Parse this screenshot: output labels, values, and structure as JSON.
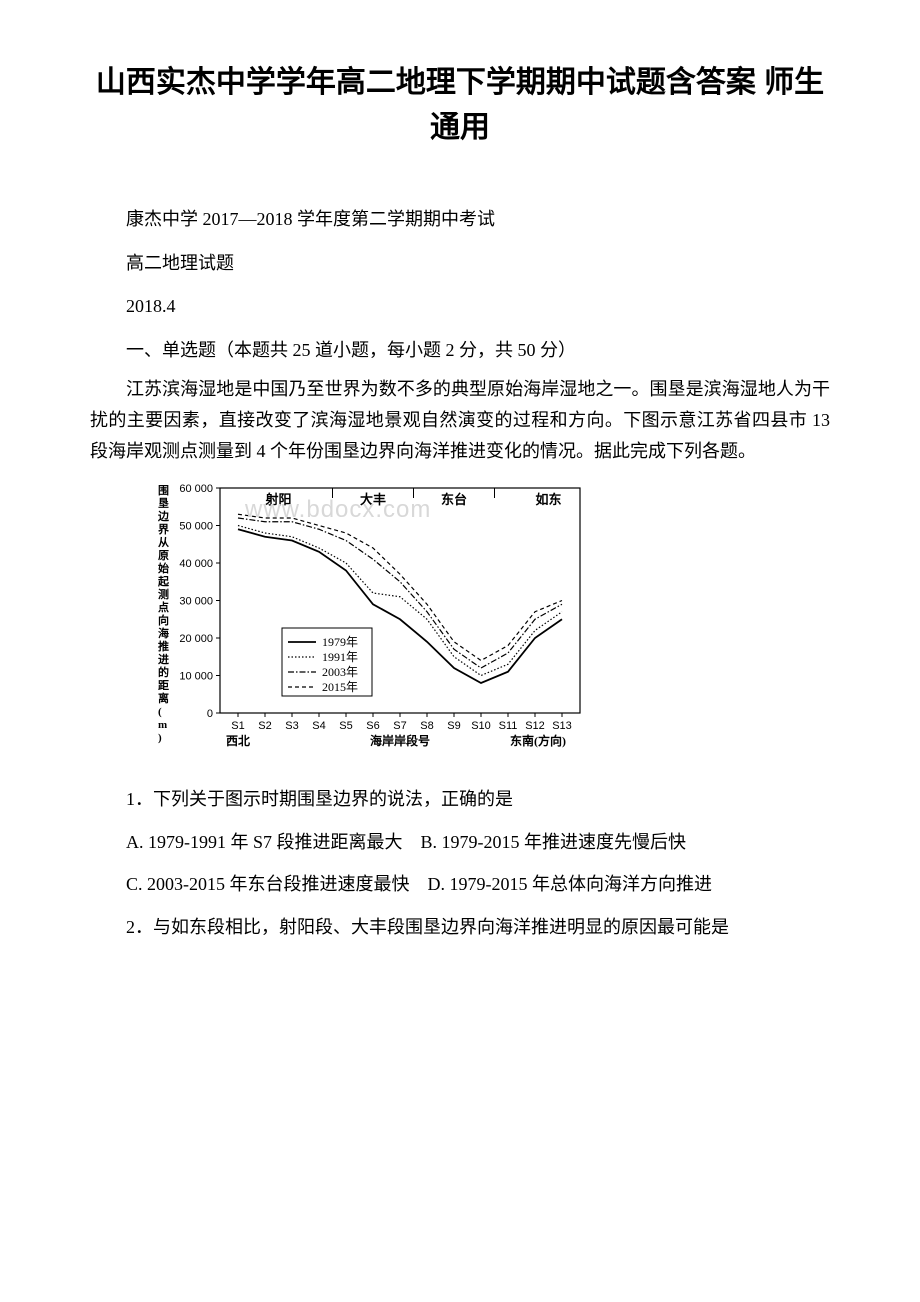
{
  "document": {
    "title": "山西实杰中学学年高二地理下学期期中试题含答案 师生通用",
    "school_line": "康杰中学 2017—2018 学年度第二学期期中考试",
    "exam_title": "高二地理试题",
    "date": "2018.4",
    "section_header": "一、单选题（本题共 25 道小题，每小题 2 分，共 50 分）",
    "intro_paragraph": "江苏滨海湿地是中国乃至世界为数不多的典型原始海岸湿地之一。围垦是滨海湿地人为干扰的主要因素，直接改变了滨海湿地景观自然演变的过程和方向。下图示意江苏省四县市 13 段海岸观测点测量到 4 个年份围垦边界向海洋推进变化的情况。据此完成下列各题。",
    "q1": "1．下列关于图示时期围垦边界的说法，正确的是",
    "q1_option_ab": "A. 1979-1991 年 S7 段推进距离最大　B. 1979-2015 年推进速度先慢后快",
    "q1_option_cd": "C. 2003-2015 年东台段推进速度最快　D. 1979-2015 年总体向海洋方向推进",
    "q2": "2．与如东段相比，射阳段、大丰段围垦边界向海洋推进明显的原因最可能是",
    "watermark": "www.bdocx.com"
  },
  "chart": {
    "type": "line",
    "y_label": "围垦边界从原始起测点向海推进的距离(m)",
    "y_ticks": [
      0,
      10000,
      20000,
      30000,
      40000,
      50000,
      60000
    ],
    "y_tick_labels": [
      "0",
      "10 000",
      "20 000",
      "30 000",
      "40 000",
      "50 000",
      "60 000"
    ],
    "ylim": [
      0,
      60000
    ],
    "x_categories": [
      "S1",
      "S2",
      "S3",
      "S4",
      "S5",
      "S6",
      "S7",
      "S8",
      "S9",
      "S10",
      "S11",
      "S12",
      "S13"
    ],
    "region_labels": [
      "射阳",
      "大丰",
      "东台",
      "如东"
    ],
    "region_positions": [
      1.5,
      5,
      8,
      11.5
    ],
    "region_dividers": [
      3.5,
      6.5,
      9.5
    ],
    "x_axis_label": "海岸岸段号",
    "direction_left": "西北",
    "direction_right": "东南(方向)",
    "legend": [
      "1979年",
      "1991年",
      "2003年",
      "2015年"
    ],
    "legend_styles": [
      "solid-thick",
      "dotted",
      "dashdot",
      "dashed"
    ],
    "series": {
      "1979": [
        49000,
        47000,
        46000,
        43000,
        38000,
        29000,
        25000,
        19000,
        12000,
        8000,
        11000,
        20000,
        25000
      ],
      "1991": [
        50000,
        48000,
        47000,
        44000,
        40000,
        32000,
        31000,
        25000,
        15000,
        10000,
        13000,
        22000,
        27000
      ],
      "2003": [
        52000,
        51000,
        51000,
        49000,
        46000,
        41000,
        35000,
        27000,
        17000,
        12000,
        16000,
        25000,
        29000
      ],
      "2015": [
        53000,
        52000,
        52000,
        50000,
        48000,
        44000,
        37000,
        29000,
        19000,
        14000,
        18000,
        27000,
        30000
      ]
    },
    "line_color": "#000000",
    "background_color": "#ffffff",
    "border_color": "#000000",
    "label_fontsize": 11
  }
}
